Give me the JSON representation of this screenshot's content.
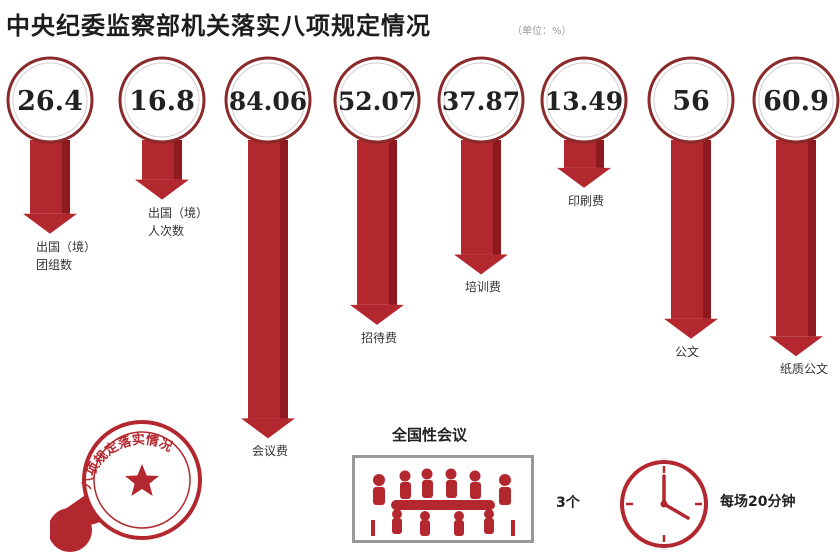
{
  "title": "中央纪委监察部机关落实八项规定情况",
  "unit_note": "（单位：%）",
  "chart_data": {
    "type": "bar",
    "title": "中央纪委监察部机关落实八项规定情况",
    "unit": "%",
    "categories": [
      "出国（境）团组数",
      "出国（境）人次数",
      "会议费",
      "招待费",
      "培训费",
      "印刷费",
      "公文",
      "纸质公文"
    ],
    "values": [
      26.4,
      16.8,
      84.06,
      52.07,
      37.87,
      13.49,
      56,
      60.9
    ],
    "value_labels": [
      "26.4",
      "16.8",
      "84.06",
      "52.07",
      "37.87",
      "13.49",
      "56",
      "60.9"
    ]
  },
  "labels": [
    [
      "出国（境）",
      "团组数"
    ],
    [
      "出国（境）",
      "人次数"
    ],
    [
      "会议费"
    ],
    [
      "招待费"
    ],
    [
      "培训费"
    ],
    [
      "印刷费"
    ],
    [
      "公文"
    ],
    [
      "纸质公文"
    ]
  ],
  "meeting": {
    "title": "全国性会议",
    "count": "3个"
  },
  "time": {
    "text": "每场20分钟"
  },
  "stamp": {
    "text": "八项规定落实情况"
  },
  "colors": {
    "bar": "#b3282e",
    "bar_dark": "#8e1a20",
    "circle_border": "#8a2a2a",
    "accent": "#b3282e"
  }
}
